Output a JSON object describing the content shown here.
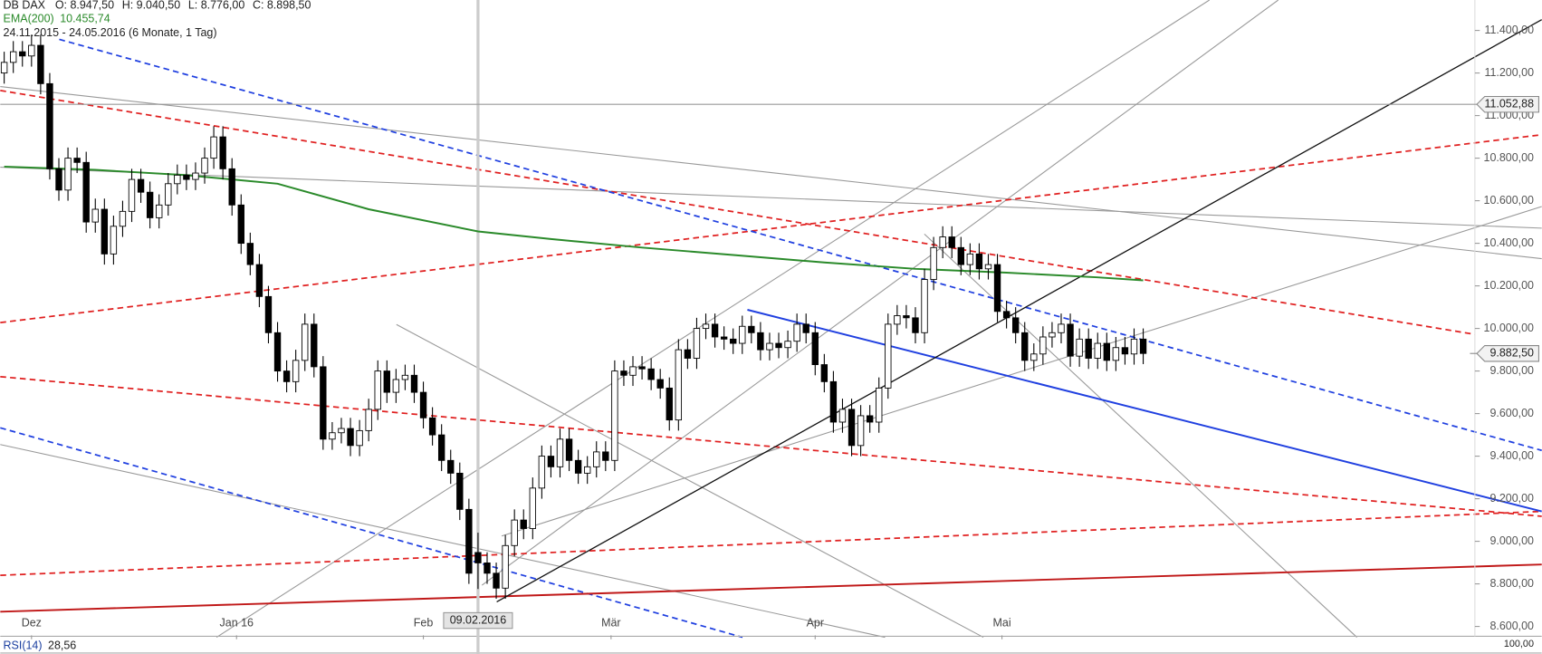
{
  "chart_data": {
    "type": "candlestick",
    "title": "DB DAX",
    "ohlc_labels": [
      "O: 8.947,50",
      "H: 9.040,50",
      "L: 8.776,00",
      "C: 8.898,50"
    ],
    "period": "24.11.2015 - 24.05.2016 (6 Monate, 1 Tag)",
    "up_color": "#ffffff",
    "down_color": "#000000",
    "open": [
      11200,
      11250,
      11300,
      11280,
      11330,
      11150,
      10750,
      10650,
      10800,
      10780,
      10500,
      10560,
      10350,
      10480,
      10550,
      10700,
      10640,
      10520,
      10580,
      10680,
      10720,
      10700,
      10730,
      10800,
      10900,
      10750,
      10580,
      10400,
      10300,
      10150,
      9980,
      9800,
      9750,
      9850,
      10020,
      9820,
      9480,
      9510,
      9530,
      9450,
      9520,
      9620,
      9800,
      9700,
      9760,
      9780,
      9700,
      9580,
      9500,
      9380,
      9320,
      9150,
      8947.5,
      8898.5,
      8850,
      8780,
      8980,
      9100,
      9060,
      9250,
      9400,
      9350,
      9480,
      9380,
      9320,
      9350,
      9420,
      9380,
      9800,
      9780,
      9820,
      9810,
      9760,
      9720,
      9570,
      9900,
      9860,
      10000,
      10020,
      9960,
      9950,
      9930,
      10010,
      9980,
      9900,
      9930,
      9910,
      9940,
      10020,
      9980,
      9830,
      9750,
      9560,
      9620,
      9450,
      9590,
      9560,
      9720,
      10020,
      10060,
      10050,
      9980,
      10230,
      10380,
      10430,
      10380,
      10300,
      10350,
      10280,
      10300,
      10080,
      10050,
      9980,
      9850,
      9880,
      9960,
      9980,
      10020,
      9870,
      9950,
      9860,
      9930,
      9850,
      9910,
      9880,
      9950
    ],
    "high": [
      11300,
      11350,
      11350,
      11380,
      11380,
      11200,
      10800,
      10850,
      10850,
      10830,
      10610,
      10610,
      10530,
      10600,
      10750,
      10750,
      10690,
      10630,
      10730,
      10770,
      10770,
      10780,
      10850,
      10950,
      10950,
      10800,
      10630,
      10450,
      10350,
      10200,
      10030,
      9850,
      9900,
      10070,
      10070,
      9870,
      9560,
      9580,
      9580,
      9570,
      9670,
      9850,
      9850,
      9810,
      9830,
      9830,
      9750,
      9630,
      9550,
      9430,
      9370,
      9200,
      9040.5,
      8948.5,
      8900,
      9030,
      9150,
      9150,
      9300,
      9450,
      9450,
      9530,
      9530,
      9430,
      9400,
      9470,
      9470,
      9850,
      9850,
      9870,
      9870,
      9860,
      9810,
      9770,
      9950,
      9950,
      10050,
      10070,
      10070,
      10010,
      10000,
      10060,
      10060,
      10030,
      9980,
      9980,
      9990,
      10070,
      10070,
      10030,
      9880,
      9800,
      9670,
      9670,
      9640,
      9640,
      9770,
      10070,
      10110,
      10110,
      10100,
      10280,
      10430,
      10480,
      10480,
      10430,
      10400,
      10400,
      10350,
      10350,
      10130,
      10100,
      10030,
      9930,
      10010,
      10030,
      10070,
      10070,
      10000,
      10000,
      9980,
      9980,
      9960,
      9960,
      10000,
      10000
    ],
    "low": [
      11150,
      11200,
      11230,
      11230,
      11100,
      10700,
      10600,
      10600,
      10730,
      10450,
      10450,
      10300,
      10300,
      10430,
      10500,
      10590,
      10470,
      10470,
      10530,
      10630,
      10650,
      10650,
      10680,
      10750,
      10700,
      10530,
      10350,
      10250,
      10100,
      9930,
      9750,
      9700,
      9700,
      9800,
      9770,
      9430,
      9430,
      9460,
      9400,
      9400,
      9470,
      9570,
      9650,
      9650,
      9710,
      9650,
      9530,
      9450,
      9330,
      9270,
      9100,
      8800,
      8776,
      8800,
      8730,
      8730,
      8930,
      9010,
      9010,
      9200,
      9300,
      9300,
      9330,
      9270,
      9270,
      9300,
      9330,
      9330,
      9730,
      9730,
      9760,
      9710,
      9670,
      9520,
      9520,
      9810,
      9810,
      9950,
      9910,
      9900,
      9880,
      9880,
      9930,
      9850,
      9850,
      9860,
      9860,
      9890,
      9930,
      9780,
      9700,
      9510,
      9510,
      9400,
      9400,
      9510,
      9510,
      9670,
      9970,
      10000,
      9930,
      9930,
      10180,
      10330,
      10330,
      10250,
      10250,
      10230,
      10230,
      10030,
      10000,
      9930,
      9800,
      9800,
      9830,
      9910,
      9930,
      9820,
      9820,
      9810,
      9810,
      9800,
      9800,
      9830,
      9830,
      9832.5
    ],
    "close": [
      11250,
      11300,
      11280,
      11330,
      11150,
      10750,
      10650,
      10800,
      10780,
      10500,
      10560,
      10350,
      10480,
      10550,
      10700,
      10640,
      10520,
      10580,
      10680,
      10720,
      10700,
      10730,
      10800,
      10900,
      10750,
      10580,
      10400,
      10300,
      10150,
      9980,
      9800,
      9750,
      9850,
      10020,
      9820,
      9480,
      9510,
      9530,
      9450,
      9520,
      9620,
      9800,
      9700,
      9760,
      9780,
      9700,
      9580,
      9500,
      9380,
      9320,
      9150,
      8850,
      8898.5,
      8850,
      8780,
      8980,
      9100,
      9060,
      9250,
      9400,
      9350,
      9480,
      9380,
      9320,
      9350,
      9420,
      9380,
      9800,
      9780,
      9820,
      9810,
      9760,
      9720,
      9570,
      9900,
      9860,
      10000,
      10020,
      9960,
      9950,
      9930,
      10010,
      9980,
      9900,
      9930,
      9910,
      9940,
      10020,
      9980,
      9830,
      9750,
      9560,
      9620,
      9450,
      9590,
      9560,
      9720,
      10020,
      10060,
      10050,
      9980,
      10230,
      10380,
      10430,
      10380,
      10300,
      10350,
      10280,
      10300,
      10080,
      10050,
      9980,
      9850,
      9880,
      9960,
      9980,
      10020,
      9870,
      9950,
      9860,
      9930,
      9850,
      9910,
      9880,
      9950,
      9882.5
    ],
    "ema": {
      "name": "EMA(200)",
      "value_label": "10.455,74",
      "color": "#2a8a2a",
      "x": [
        0,
        10,
        20,
        30,
        40,
        52,
        60,
        70,
        80,
        90,
        100,
        110,
        120,
        125
      ],
      "values": [
        10760,
        10745,
        10720,
        10680,
        10560,
        10455.74,
        10420,
        10380,
        10345,
        10310,
        10280,
        10262,
        10240,
        10226
      ]
    },
    "xlim": [
      -0.43,
      161.4
    ],
    "xticks": [
      {
        "value": 3,
        "label": "Dez"
      },
      {
        "value": 25.5,
        "label": "Jan 16"
      },
      {
        "value": 46,
        "label": "Feb"
      },
      {
        "value": 66.6,
        "label": "Mär"
      },
      {
        "value": 89,
        "label": "Apr"
      },
      {
        "value": 109.5,
        "label": "Mai"
      }
    ],
    "ylim": [
      8563,
      11543
    ],
    "yticks": [
      {
        "value": 8600,
        "label": "8.600,00"
      },
      {
        "value": 8800,
        "label": "8.800,00"
      },
      {
        "value": 9000,
        "label": "9.000,00"
      },
      {
        "value": 9200,
        "label": "9.200,00"
      },
      {
        "value": 9400,
        "label": "9.400,00"
      },
      {
        "value": 9600,
        "label": "9.600,00"
      },
      {
        "value": 9800,
        "label": "9.800,00"
      },
      {
        "value": 10000,
        "label": "10.000,00"
      },
      {
        "value": 10200,
        "label": "10.200,00"
      },
      {
        "value": 10400,
        "label": "10.400,00"
      },
      {
        "value": 10600,
        "label": "10.600,00"
      },
      {
        "value": 10800,
        "label": "10.800,00"
      },
      {
        "value": 11000,
        "label": "11.000,00"
      },
      {
        "value": 11200,
        "label": "11.200,00"
      },
      {
        "value": 11400,
        "label": "11.400,00"
      }
    ],
    "price_line": {
      "value": 11052.88,
      "label": "11.052,88"
    },
    "last_price": {
      "value": 9882.5,
      "label": "9.882,50"
    },
    "crosshair": {
      "value": 52,
      "label": "09.02.2016"
    },
    "rsi": {
      "name": "RSI(14)",
      "value_label": "28,56",
      "axis_label": "100,00"
    }
  }
}
